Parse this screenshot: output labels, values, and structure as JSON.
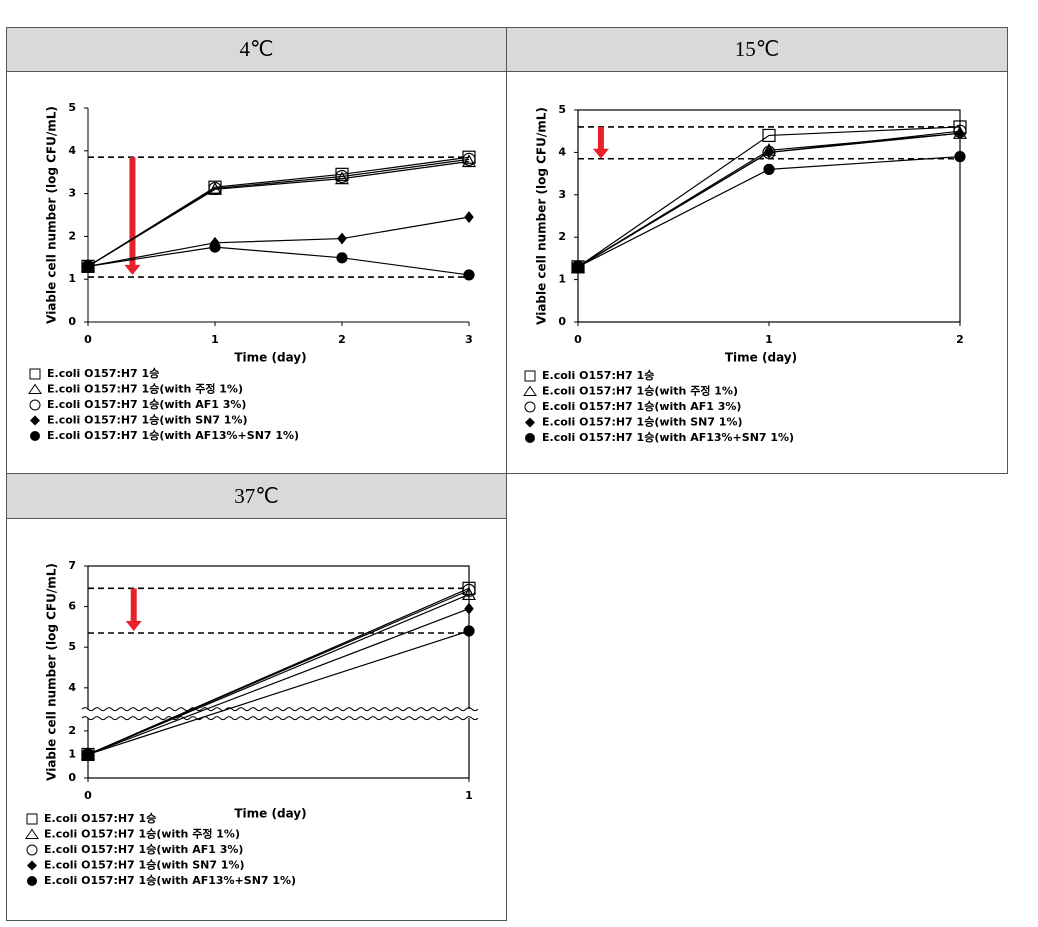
{
  "chart_data": [
    {
      "type": "line",
      "title": "4℃",
      "xlabel": "Time (day)",
      "ylabel": "Viable cell number (log CFU/mL)",
      "x": [
        0,
        1,
        2,
        3
      ],
      "xlim": [
        0,
        3
      ],
      "xticks": [
        0,
        1,
        2,
        3
      ],
      "ylim": [
        0,
        5
      ],
      "yticks": [
        0,
        1,
        2,
        3,
        4,
        5
      ],
      "frame": false,
      "series": [
        {
          "name": "E.coli O157:H7 1승",
          "marker": "square-open",
          "color": "#000000",
          "values": [
            1.3,
            3.15,
            3.45,
            3.85
          ]
        },
        {
          "name": "E.coli O157:H7 1승(with 주정 1%)",
          "marker": "triangle-open",
          "color": "#000000",
          "values": [
            1.3,
            3.1,
            3.35,
            3.75
          ]
        },
        {
          "name": "E.coli O157:H7 1승(with AF1 3%)",
          "marker": "circle-open",
          "color": "#000000",
          "values": [
            1.3,
            3.12,
            3.4,
            3.8
          ]
        },
        {
          "name": "E.coli O157:H7 1승(with SN7 1%)",
          "marker": "diamond",
          "color": "#000000",
          "values": [
            1.3,
            1.85,
            1.95,
            2.45
          ]
        },
        {
          "name": "E.coli O157:H7 1승(with AF13%+SN7 1%)",
          "marker": "circle",
          "color": "#000000",
          "values": [
            1.3,
            1.75,
            1.5,
            1.1
          ]
        }
      ],
      "hlines": [
        3.85,
        1.05
      ],
      "arrow": {
        "x": 0.35,
        "from": 3.85,
        "to": 1.1,
        "color": "#e8202a"
      }
    },
    {
      "type": "line",
      "title": "15℃",
      "xlabel": "Time (day)",
      "ylabel": "Viable cell number (log CFU/mL)",
      "x": [
        0,
        1,
        2
      ],
      "xlim": [
        0,
        2
      ],
      "xticks": [
        0,
        1,
        2
      ],
      "ylim": [
        0,
        5
      ],
      "yticks": [
        0,
        1,
        2,
        3,
        4,
        5
      ],
      "frame": true,
      "series": [
        {
          "name": "E.coli O157:H7 1승",
          "marker": "square-open",
          "color": "#000000",
          "values": [
            1.3,
            4.4,
            4.6
          ]
        },
        {
          "name": "E.coli O157:H7 1승(with 주정 1%)",
          "marker": "triangle-open",
          "color": "#000000",
          "values": [
            1.3,
            4.05,
            4.45
          ]
        },
        {
          "name": "E.coli O157:H7 1승(with AF1 3%)",
          "marker": "circle-open",
          "color": "#000000",
          "values": [
            1.3,
            4.0,
            4.5
          ]
        },
        {
          "name": "E.coli O157:H7 1승(with SN7 1%)",
          "marker": "diamond",
          "color": "#000000",
          "values": [
            1.3,
            4.0,
            4.45
          ]
        },
        {
          "name": "E.coli O157:H7 1승(with AF13%+SN7 1%)",
          "marker": "circle",
          "color": "#000000",
          "values": [
            1.3,
            3.6,
            3.9
          ]
        }
      ],
      "hlines": [
        4.6,
        3.85
      ],
      "arrow": {
        "x": 0.12,
        "from": 4.6,
        "to": 3.85,
        "color": "#e8202a"
      }
    },
    {
      "type": "line",
      "title": "37℃",
      "xlabel": "Time (day)",
      "ylabel": "Viable cell number (log CFU/mL)",
      "x": [
        0,
        1
      ],
      "xlim": [
        0,
        1
      ],
      "xticks": [
        0,
        1
      ],
      "ylim": [
        0,
        7
      ],
      "yticks": [
        0,
        1,
        2,
        4,
        5,
        6,
        7
      ],
      "ybreak": [
        2.5,
        3.5
      ],
      "frame": true,
      "series": [
        {
          "name": "E.coli O157:H7 1승",
          "marker": "square-open",
          "color": "#000000",
          "values": [
            1,
            6.45
          ]
        },
        {
          "name": "E.coli O157:H7 1승(with 주정 1%)",
          "marker": "triangle-open",
          "color": "#000000",
          "values": [
            1,
            6.3
          ]
        },
        {
          "name": "E.coli O157:H7 1승(with AF1 3%)",
          "marker": "circle-open",
          "color": "#000000",
          "values": [
            1,
            6.4
          ]
        },
        {
          "name": "E.coli O157:H7 1승(with SN7 1%)",
          "marker": "diamond",
          "color": "#000000",
          "values": [
            1,
            5.95
          ]
        },
        {
          "name": "E.coli O157:H7 1승(with AF13%+SN7 1%)",
          "marker": "circle",
          "color": "#000000",
          "values": [
            1,
            5.4
          ]
        }
      ],
      "hlines": [
        6.45,
        5.35
      ],
      "arrow": {
        "x": 0.12,
        "from": 6.45,
        "to": 5.4,
        "color": "#e8202a"
      }
    }
  ]
}
